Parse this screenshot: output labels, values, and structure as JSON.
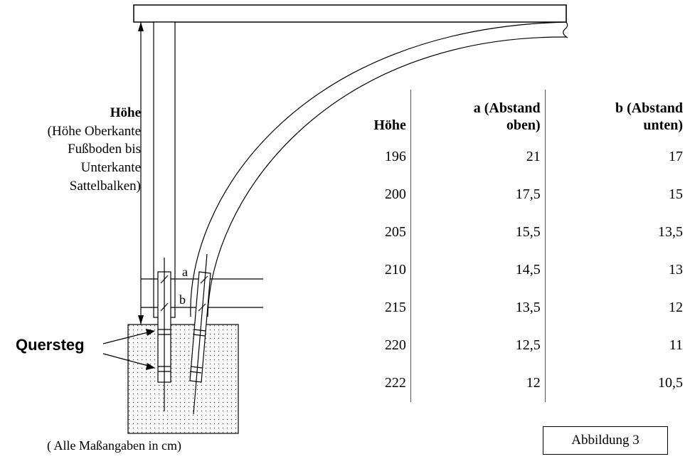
{
  "labels": {
    "hoehe_title": "Höhe",
    "hoehe_desc_1": "(Höhe Oberkante",
    "hoehe_desc_2": "Fußboden bis",
    "hoehe_desc_3": "Unterkante",
    "hoehe_desc_4": "Sattelbalken)",
    "quersteg": "Quersteg",
    "a": "a",
    "b": "b",
    "note": "( Alle Maßangaben in  cm)",
    "figure": "Abbildung 3"
  },
  "table": {
    "headers": [
      "Höhe",
      "a (Abstand oben)",
      "b (Abstand unten)"
    ],
    "header_lines": [
      [
        "Höhe"
      ],
      [
        "a (Abstand",
        "oben)"
      ],
      [
        "b (Abstand",
        "unten)"
      ]
    ],
    "rows": [
      [
        "196",
        "21",
        "17"
      ],
      [
        "200",
        "17,5",
        "15"
      ],
      [
        "205",
        "15,5",
        "13,5"
      ],
      [
        "210",
        "14,5",
        "13"
      ],
      [
        "215",
        "13,5",
        "12"
      ],
      [
        "220",
        "12,5",
        "11"
      ],
      [
        "222",
        "12",
        "10,5"
      ]
    ]
  }
}
